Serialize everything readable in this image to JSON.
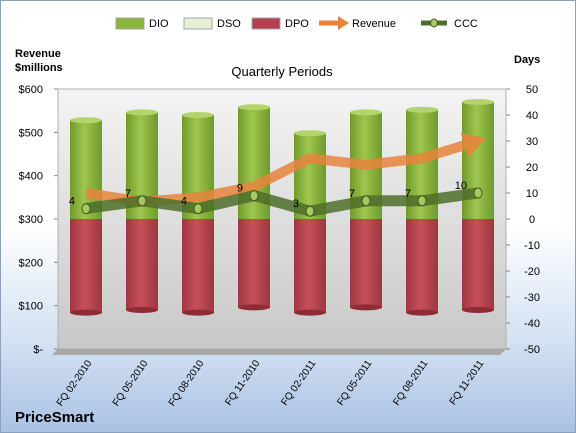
{
  "company": "PriceSmart",
  "chart_data": {
    "type": "bar",
    "title": "Quarterly Periods",
    "categories": [
      "FQ 02-2010",
      "FQ 05-2010",
      "FQ 08-2010",
      "FQ 11-2010",
      "FQ 02-2011",
      "FQ 05-2011",
      "FQ 08-2011",
      "FQ 11-2011"
    ],
    "left_axis": {
      "label_line1": "Revenue",
      "label_line2": "$millions",
      "ylim": [
        0,
        600
      ],
      "ticks": [
        0,
        100,
        200,
        300,
        400,
        500,
        600
      ],
      "tick_labels": [
        "$-",
        "$100",
        "$200",
        "$300",
        "$400",
        "$500",
        "$600"
      ]
    },
    "right_axis": {
      "label": "Days",
      "ylim": [
        -50,
        50
      ],
      "ticks": [
        -50,
        -40,
        -30,
        -20,
        -10,
        0,
        10,
        20,
        30,
        40,
        50
      ],
      "tick_labels": [
        "-50",
        "-40",
        "-30",
        "-20",
        "-10",
        "0",
        "10",
        "20",
        "30",
        "40",
        "50"
      ]
    },
    "legend_position": "top",
    "legend": [
      {
        "name": "DIO",
        "kind": "bar",
        "color": "#8cb43c"
      },
      {
        "name": "DSO",
        "kind": "bar",
        "color": "#e6f0d2"
      },
      {
        "name": "DPO",
        "kind": "bar",
        "color": "#b3404a"
      },
      {
        "name": "Revenue",
        "kind": "arrow",
        "color": "#e8843c"
      },
      {
        "name": "CCC",
        "kind": "line",
        "color": "#4e6e2a"
      }
    ],
    "series": [
      {
        "name": "DIO",
        "axis": "right",
        "values": [
          38,
          41,
          40,
          43,
          33,
          41,
          42,
          45
        ]
      },
      {
        "name": "DSO",
        "axis": "right",
        "values": [
          0,
          0,
          0,
          0,
          0,
          0,
          0,
          0
        ]
      },
      {
        "name": "DPO",
        "axis": "right",
        "values": [
          -36,
          -35,
          -36,
          -34,
          -36,
          -34,
          -36,
          -35
        ]
      },
      {
        "name": "Revenue",
        "axis": "left",
        "values": [
          360,
          340,
          350,
          375,
          440,
          425,
          440,
          480
        ]
      },
      {
        "name": "CCC",
        "axis": "right",
        "values": [
          4,
          7,
          4,
          9,
          3,
          7,
          7,
          10
        ],
        "data_labels": [
          "4",
          "7",
          "4",
          "9",
          "3",
          "7",
          "7",
          "10"
        ]
      }
    ],
    "grid": false
  }
}
